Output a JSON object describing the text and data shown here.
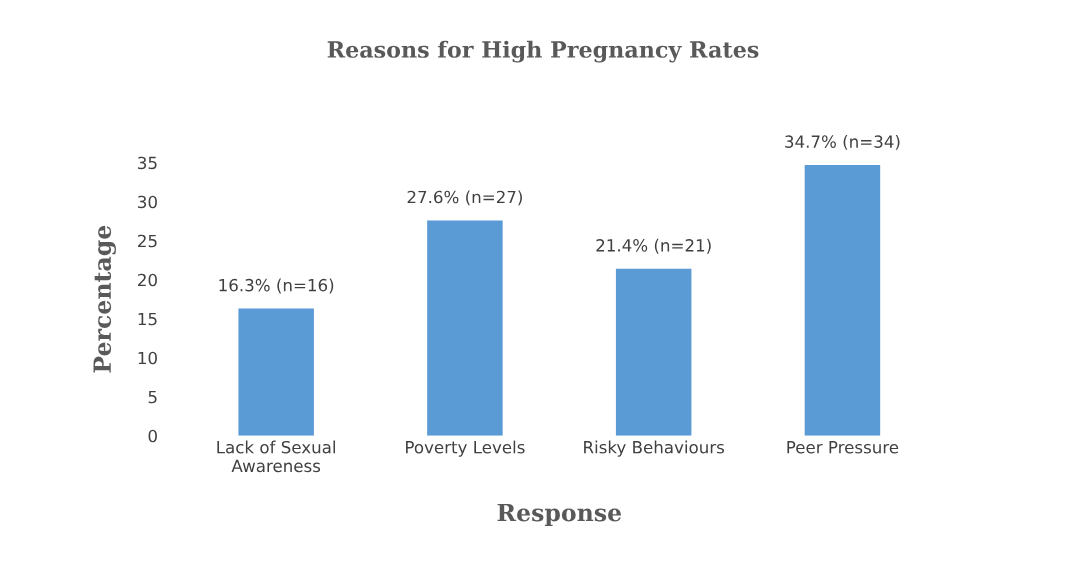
{
  "chart_data": {
    "type": "bar",
    "title": "Reasons for High Pregnancy Rates",
    "xlabel": "Response",
    "ylabel": "Percentage",
    "categories": [
      "Lack of Sexual\nAwareness",
      "Poverty Levels",
      "Risky Behaviours",
      "Peer Pressure"
    ],
    "values": [
      16.3,
      27.6,
      21.4,
      34.7
    ],
    "color": "#5b9bd5",
    "value_labels": [
      "16.3% (n=16)",
      "27.6% (n=27)",
      "21.4% (n=21)",
      "34.7% (n=34)"
    ],
    "ylim": [
      0,
      35
    ],
    "yticks": [
      0,
      5,
      10,
      15,
      20,
      25,
      30,
      35
    ],
    "grid": false,
    "legend": false
  }
}
